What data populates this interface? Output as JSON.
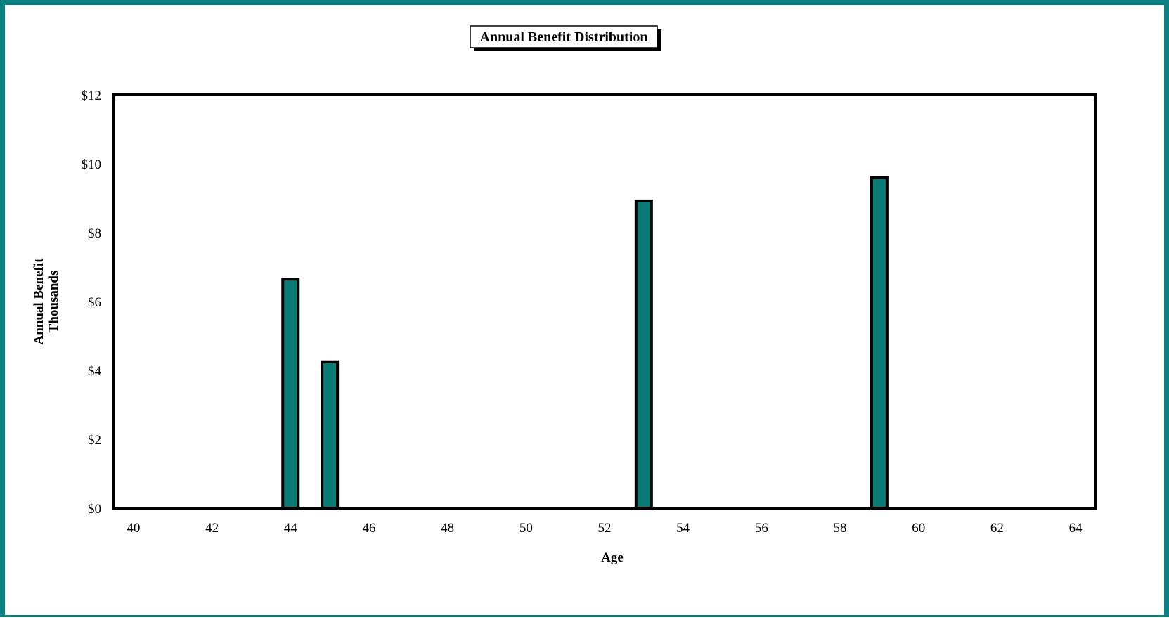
{
  "chart_data": {
    "type": "bar",
    "title": "Annual  Benefit Distribution",
    "xlabel": "Age",
    "ylabel": [
      "Annual  Benefit",
      "Thousands"
    ],
    "x_ticks": [
      "40",
      "42",
      "44",
      "46",
      "48",
      "50",
      "52",
      "54",
      "56",
      "58",
      "60",
      "62",
      "64"
    ],
    "y_ticks": [
      "$0",
      "$2",
      "$4",
      "$6",
      "$8",
      "$10",
      "$12"
    ],
    "xlim": [
      39.5,
      64.5
    ],
    "ylim": [
      0,
      12
    ],
    "x": [
      44,
      45,
      53,
      59
    ],
    "values": [
      6.65,
      4.25,
      8.92,
      9.6
    ],
    "unit": "Thousands",
    "grid": false,
    "colors": {
      "bar_fill": "#0a7a74",
      "bar_stroke": "#000000",
      "frame": "#0a8080"
    }
  }
}
